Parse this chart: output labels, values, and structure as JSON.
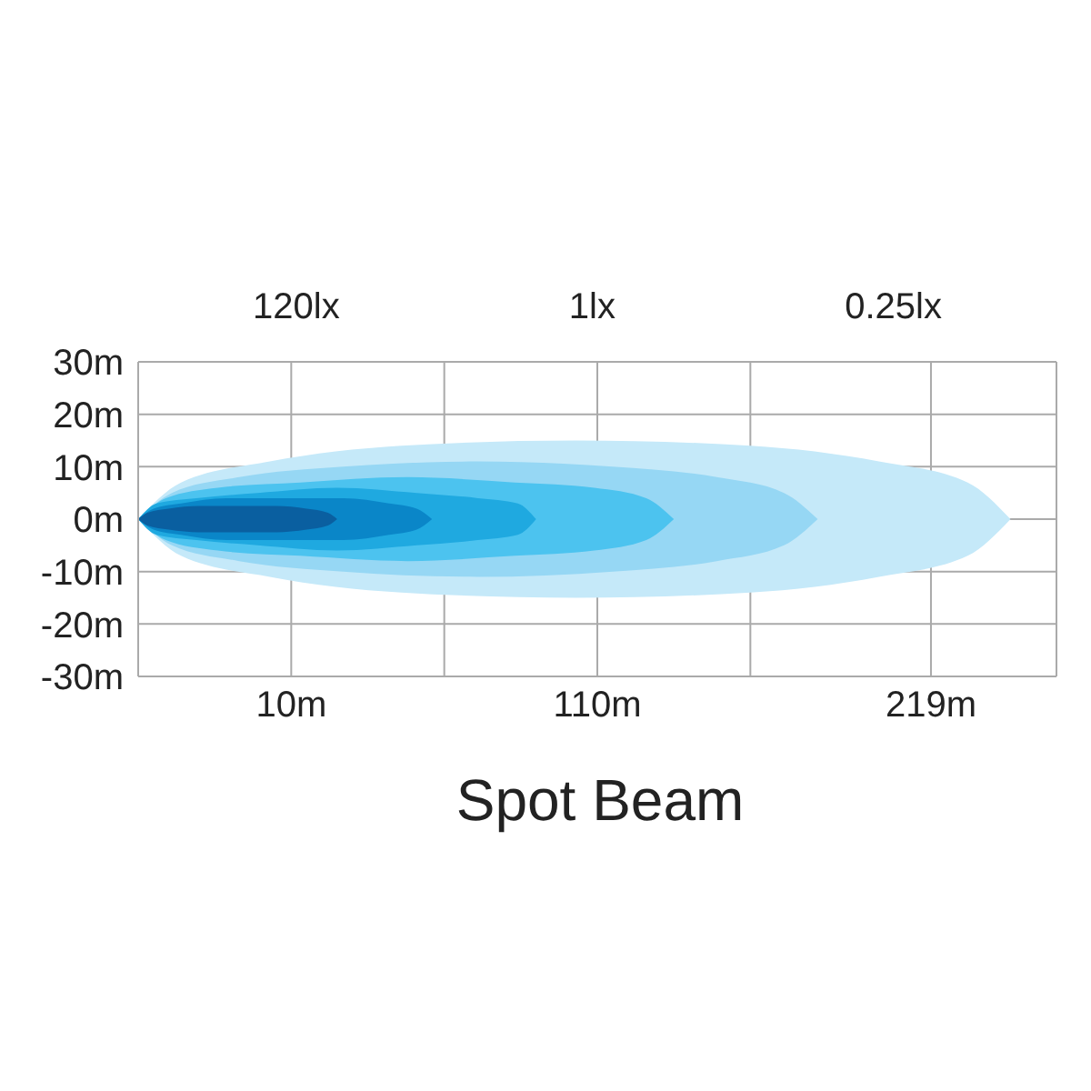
{
  "chart_data": {
    "type": "area",
    "title": "Spot Beam",
    "annotations": [
      "120lx",
      "1lx",
      "0.25lx"
    ],
    "xlim": [
      -40,
      260
    ],
    "xticks": [
      {
        "value": 10,
        "label": "10m"
      },
      {
        "value": 60,
        "label": null
      },
      {
        "value": 110,
        "label": "110m"
      },
      {
        "value": 160,
        "label": null
      },
      {
        "value": 219,
        "label": "219m"
      }
    ],
    "ylim": [
      -30,
      30
    ],
    "yticks": [
      {
        "value": -30,
        "label": "-30m"
      },
      {
        "value": -20,
        "label": "-20m"
      },
      {
        "value": -10,
        "label": "-10m"
      },
      {
        "value": 0,
        "label": "0m"
      },
      {
        "value": 10,
        "label": "10m"
      },
      {
        "value": 20,
        "label": "20m"
      },
      {
        "value": 30,
        "label": "30m"
      }
    ],
    "grid": true,
    "series": [
      {
        "color": "#c5e9f9",
        "x": [
          -40,
          -26,
          3,
          46,
          103,
          160,
          202,
          231,
          245
        ],
        "values": [
          0,
          7,
          11,
          14,
          15,
          14,
          11,
          7,
          0
        ]
      },
      {
        "color": "#c5e9f9",
        "x": [
          -40,
          -26,
          3,
          46,
          103,
          160,
          202,
          231,
          245
        ],
        "values": [
          0,
          -7,
          -11,
          -14,
          -15,
          -14,
          -11,
          -7,
          0
        ]
      },
      {
        "color": "#96d7f4",
        "x": [
          -40,
          -29,
          -7,
          27,
          71,
          115,
          149,
          171,
          182
        ],
        "values": [
          0,
          5,
          8,
          10,
          11,
          10,
          8,
          5,
          0
        ]
      },
      {
        "color": "#96d7f4",
        "x": [
          -40,
          -29,
          -7,
          27,
          71,
          115,
          149,
          171,
          182
        ],
        "values": [
          0,
          -5,
          -8,
          -10,
          -11,
          -10,
          -8,
          -5,
          0
        ]
      },
      {
        "color": "#4cc3ef",
        "x": [
          -40,
          -31,
          -14,
          13,
          48,
          83,
          109,
          126,
          135
        ],
        "values": [
          0,
          4,
          6,
          7,
          8,
          7,
          6,
          4,
          0
        ]
      },
      {
        "color": "#4cc3ef",
        "x": [
          -40,
          -31,
          -14,
          13,
          48,
          83,
          109,
          126,
          135
        ],
        "values": [
          0,
          -4,
          -6,
          -7,
          -8,
          -7,
          -6,
          -4,
          0
        ]
      },
      {
        "color": "#1fa9e0",
        "x": [
          -40,
          -34,
          -21,
          -1,
          25,
          51,
          71,
          84,
          90
        ],
        "values": [
          0,
          3,
          4,
          5,
          6,
          5,
          4,
          3,
          0
        ]
      },
      {
        "color": "#1fa9e0",
        "x": [
          -40,
          -34,
          -21,
          -1,
          25,
          51,
          71,
          84,
          90
        ],
        "values": [
          0,
          -3,
          -4,
          -5,
          -6,
          -5,
          -4,
          -3,
          0
        ]
      },
      {
        "color": "#0a86c8",
        "x": [
          -40,
          -35,
          -26,
          -11,
          8,
          27,
          42,
          51,
          56
        ],
        "values": [
          0,
          2,
          3,
          4,
          4,
          4,
          3,
          2,
          0
        ]
      },
      {
        "color": "#0a86c8",
        "x": [
          -40,
          -35,
          -26,
          -11,
          8,
          27,
          42,
          51,
          56
        ],
        "values": [
          0,
          -2,
          -3,
          -4,
          -4,
          -4,
          -3,
          -2,
          0
        ]
      },
      {
        "color": "#0a5fa0",
        "x": [
          -40,
          -37,
          -30,
          -20,
          -8,
          5,
          15,
          22,
          25
        ],
        "values": [
          0,
          1.2,
          2,
          2.5,
          2.5,
          2.5,
          2,
          1.2,
          0
        ]
      },
      {
        "color": "#0a5fa0",
        "x": [
          -40,
          -37,
          -30,
          -20,
          -8,
          5,
          15,
          22,
          25
        ],
        "values": [
          0,
          -1.2,
          -2,
          -2.5,
          -2.5,
          -2.5,
          -2,
          -1.2,
          0
        ]
      }
    ]
  }
}
